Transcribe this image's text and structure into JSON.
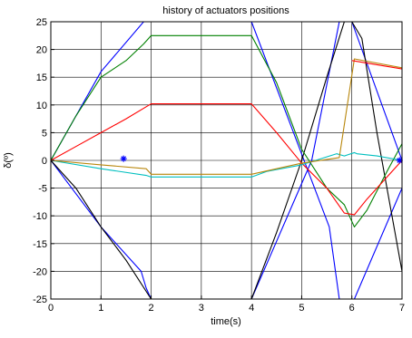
{
  "chart_data": {
    "type": "line",
    "title": "history of actuators positions",
    "xlabel": "time(s)",
    "ylabel": "δ(º)",
    "xlim": [
      0,
      7
    ],
    "ylim": [
      -25,
      25
    ],
    "grid": true,
    "xticks": [
      "0",
      "1",
      "2",
      "3",
      "4",
      "5",
      "6",
      "7"
    ],
    "yticks": [
      "25",
      "20",
      "15",
      "10",
      "5",
      "0",
      "-5",
      "-10",
      "-15",
      "-20",
      "-25"
    ],
    "series": [
      {
        "color": "#0000ff",
        "x": [
          0,
          1.0,
          1.85,
          2.0,
          4.0,
          5.55,
          5.75,
          5.95,
          6.05,
          7.0
        ],
        "y": [
          0,
          16,
          25,
          25,
          25,
          -12,
          -25,
          -25,
          -25,
          -5
        ]
      },
      {
        "color": "#0000ff",
        "x": [
          0,
          1.0,
          1.8,
          1.9,
          2.0,
          4.0,
          5.2,
          5.75,
          5.85,
          6.0,
          7.0
        ],
        "y": [
          0,
          -12,
          -20,
          -23,
          -25,
          -25,
          0,
          25,
          25,
          25,
          0
        ]
      },
      {
        "color": "#000000",
        "x": [
          0,
          0.5,
          1.0,
          1.5,
          2.0,
          4.0,
          4.5,
          5.0,
          5.5,
          5.85,
          6.0,
          6.2,
          6.5,
          7.0
        ],
        "y": [
          0,
          -5,
          -12,
          -18,
          -25,
          -25,
          -13,
          0,
          15,
          25,
          25,
          22,
          5,
          -20
        ]
      },
      {
        "color": "#008000",
        "x": [
          0,
          0.5,
          1.0,
          1.5,
          1.85,
          2.0,
          4.0,
          4.5,
          5.0,
          5.5,
          5.85,
          6.05,
          6.3,
          6.7,
          7.0
        ],
        "y": [
          0,
          8,
          15,
          18,
          21,
          22.5,
          22.5,
          14,
          2,
          -5,
          -8,
          -12,
          -9,
          -2,
          3
        ]
      },
      {
        "color": "#ff0000",
        "x": [
          0,
          0.5,
          1.0,
          1.5,
          2.0,
          4.0,
          4.5,
          5.0,
          5.5,
          5.85,
          6.05,
          6.3,
          6.7,
          7.0
        ],
        "y": [
          0,
          2.5,
          5,
          7.5,
          10.2,
          10.2,
          5,
          -0.5,
          -5,
          -9.5,
          -9.8,
          -7,
          -3,
          0
        ]
      },
      {
        "color": "#00bfbf",
        "x": [
          0,
          1.0,
          1.9,
          2.0,
          4.0,
          4.3,
          5.0,
          5.7,
          5.85,
          6.05,
          6.1,
          6.5,
          7.0
        ],
        "y": [
          0,
          -1.5,
          -2.7,
          -3,
          -3,
          -2,
          -0.8,
          1.2,
          0.8,
          1.4,
          1.2,
          0.8,
          0
        ]
      },
      {
        "color": "#b8860b",
        "x": [
          0,
          1.0,
          1.9,
          2.0,
          4.0,
          4.5,
          5.0,
          5.75,
          6.05,
          7.0
        ],
        "y": [
          0,
          -0.8,
          -1.5,
          -2.5,
          -2.5,
          -1.5,
          -0.5,
          0.5,
          18.3,
          16.7
        ]
      },
      {
        "color": "#ff0000",
        "x": [
          6.0,
          7.0
        ],
        "y": [
          18.0,
          16.5
        ]
      }
    ],
    "markers": [
      {
        "color": "#0000ff",
        "x": 1.45,
        "y": 0.3,
        "symbol": "*"
      },
      {
        "color": "#0000ff",
        "x": 6.95,
        "y": 0,
        "symbol": "*"
      }
    ]
  }
}
